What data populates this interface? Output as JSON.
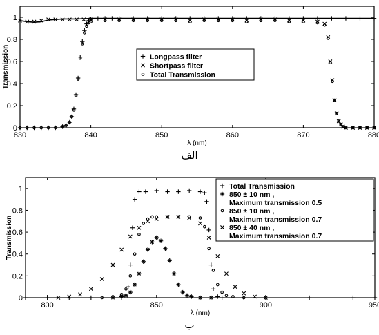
{
  "chart_data": [
    {
      "type": "scatter",
      "caption": "الف",
      "xlabel": "λ (nm)",
      "ylabel": "Transmission",
      "xlim": [
        830,
        880
      ],
      "ylim": [
        0,
        1.1
      ],
      "xticks": [
        830,
        840,
        850,
        860,
        870,
        880
      ],
      "yticks": [
        0,
        0.2,
        0.4,
        0.6,
        0.8,
        1
      ],
      "xtick_labels": [
        "830",
        "840",
        "850",
        "860",
        "870",
        "880"
      ],
      "ytick_labels": [
        "0",
        "0.2",
        "0.4",
        "0.6",
        "0.8",
        "1"
      ],
      "grid": false,
      "legend_position": "center",
      "series": [
        {
          "name": "Longpass filter",
          "marker": "plus",
          "x": [
            830.0,
            831.0,
            832.0,
            833.0,
            834.0,
            835.0,
            836.0,
            836.5,
            837.0,
            837.3,
            837.6,
            837.9,
            838.2,
            838.5,
            838.8,
            839.1,
            839.4,
            839.7,
            840.0,
            841.0,
            842.0,
            843.0,
            844.0,
            846.0,
            848.0,
            850.0,
            852.0,
            854.0,
            856.0,
            858.0,
            860.0,
            862.0,
            864.0,
            866.0,
            868.0,
            870.0,
            872.0,
            874.0,
            876.0,
            878.0,
            880.0
          ],
          "y": [
            0.0,
            0.0,
            0.0,
            0.0,
            0.0,
            0.0,
            0.01,
            0.02,
            0.05,
            0.1,
            0.17,
            0.3,
            0.45,
            0.64,
            0.78,
            0.88,
            0.94,
            0.97,
            0.98,
            0.99,
            0.99,
            0.99,
            0.99,
            0.99,
            0.99,
            0.99,
            0.99,
            0.99,
            0.99,
            0.99,
            0.99,
            0.99,
            0.99,
            0.99,
            0.99,
            0.99,
            0.99,
            0.99,
            0.99,
            0.99,
            0.99
          ]
        },
        {
          "name": "Shortpass filter",
          "marker": "x",
          "x": [
            830.0,
            831.0,
            832.0,
            833.0,
            834.0,
            835.0,
            836.0,
            837.0,
            838.0,
            839.0,
            840.0,
            842.0,
            844.0,
            846.0,
            848.0,
            850.0,
            852.0,
            854.0,
            856.0,
            858.0,
            860.0,
            862.0,
            864.0,
            866.0,
            868.0,
            870.0,
            872.0,
            873.0,
            873.5,
            873.8,
            874.1,
            874.4,
            874.7,
            875.0,
            875.3,
            875.6,
            876.0,
            877.0,
            878.0,
            879.0,
            880.0
          ],
          "y": [
            0.97,
            0.96,
            0.96,
            0.97,
            0.98,
            0.98,
            0.98,
            0.98,
            0.98,
            0.98,
            0.98,
            0.98,
            0.98,
            0.98,
            0.98,
            0.98,
            0.98,
            0.97,
            0.98,
            0.98,
            0.98,
            0.97,
            0.98,
            0.98,
            0.97,
            0.97,
            0.96,
            0.94,
            0.82,
            0.6,
            0.43,
            0.25,
            0.13,
            0.06,
            0.03,
            0.01,
            0.0,
            0.0,
            0.0,
            0.0,
            0.0
          ]
        },
        {
          "name": "Total Transmission",
          "marker": "circle",
          "x": [
            830.0,
            831.0,
            832.0,
            833.0,
            834.0,
            835.0,
            836.0,
            836.5,
            837.0,
            837.3,
            837.6,
            837.9,
            838.2,
            838.5,
            838.8,
            839.1,
            839.4,
            839.7,
            840.0,
            842.0,
            844.0,
            846.0,
            848.0,
            850.0,
            852.0,
            854.0,
            856.0,
            858.0,
            860.0,
            862.0,
            864.0,
            866.0,
            868.0,
            870.0,
            872.0,
            873.0,
            873.5,
            873.8,
            874.1,
            874.4,
            874.7,
            875.0,
            875.3,
            875.6,
            876.0,
            877.0,
            878.0,
            879.0,
            880.0
          ],
          "y": [
            0.0,
            0.0,
            0.0,
            0.0,
            0.0,
            0.0,
            0.01,
            0.02,
            0.05,
            0.1,
            0.16,
            0.29,
            0.44,
            0.63,
            0.76,
            0.86,
            0.92,
            0.95,
            0.96,
            0.97,
            0.97,
            0.97,
            0.97,
            0.97,
            0.97,
            0.96,
            0.97,
            0.97,
            0.97,
            0.96,
            0.97,
            0.97,
            0.96,
            0.96,
            0.95,
            0.93,
            0.81,
            0.59,
            0.42,
            0.25,
            0.13,
            0.06,
            0.03,
            0.01,
            0.0,
            0.0,
            0.0,
            0.0,
            0.0
          ]
        }
      ],
      "curve": {
        "x": [
          830,
          831,
          832,
          833,
          834,
          836,
          838,
          840,
          845,
          850,
          855,
          860,
          865,
          870,
          875,
          880
        ],
        "y": [
          0.97,
          0.96,
          0.955,
          0.96,
          0.975,
          0.985,
          0.985,
          0.99,
          0.99,
          0.99,
          0.99,
          0.99,
          0.99,
          0.99,
          0.99,
          0.99
        ]
      }
    },
    {
      "type": "scatter",
      "caption": "ب",
      "xlabel": "λ (nm)",
      "ylabel": "Transmission",
      "xlim": [
        790,
        950
      ],
      "ylim": [
        0,
        1.1
      ],
      "xticks": [
        800,
        850,
        900,
        950
      ],
      "yticks": [
        0,
        0.2,
        0.4,
        0.6,
        0.8,
        1
      ],
      "xtick_labels": [
        "800",
        "850",
        "900",
        "950"
      ],
      "ytick_labels": [
        "0",
        "0.2",
        "0.4",
        "0.6",
        "0.8",
        "1"
      ],
      "grid": false,
      "legend_position": "top-right",
      "series": [
        {
          "name": "Total Transmission",
          "marker": "plus",
          "x": [
            790,
            800,
            810,
            820,
            830,
            834,
            836,
            837,
            838,
            839,
            840,
            842,
            845,
            850,
            855,
            860,
            865,
            870,
            872,
            873,
            874,
            875,
            876,
            878,
            880,
            890,
            900,
            920,
            940,
            950
          ],
          "y": [
            0,
            0,
            0,
            0,
            0,
            0,
            0.02,
            0.1,
            0.3,
            0.64,
            0.9,
            0.97,
            0.97,
            0.98,
            0.97,
            0.97,
            0.98,
            0.97,
            0.96,
            0.88,
            0.62,
            0.3,
            0.08,
            0.01,
            0,
            0,
            0,
            0,
            0,
            0
          ]
        },
        {
          "name": "850 ± 10 nm ,\nMaximum transmission 0.5",
          "marker": "star",
          "x": [
            830,
            834,
            836,
            838,
            840,
            842,
            844,
            846,
            848,
            850,
            852,
            854,
            856,
            858,
            860,
            862,
            864,
            866,
            870,
            875
          ],
          "y": [
            0,
            0.01,
            0.02,
            0.05,
            0.12,
            0.22,
            0.33,
            0.44,
            0.51,
            0.55,
            0.52,
            0.45,
            0.34,
            0.22,
            0.12,
            0.05,
            0.02,
            0.01,
            0,
            0
          ]
        },
        {
          "name": "850 ± 10 nm ,\nMaximum transmission 0.7",
          "marker": "circle",
          "x": [
            825,
            830,
            834,
            836,
            838,
            840,
            842,
            844,
            846,
            848,
            850,
            855,
            860,
            865,
            870,
            872,
            874,
            876,
            878,
            880,
            882,
            885,
            890
          ],
          "y": [
            0,
            0.01,
            0.03,
            0.08,
            0.2,
            0.4,
            0.58,
            0.68,
            0.72,
            0.74,
            0.74,
            0.74,
            0.74,
            0.74,
            0.73,
            0.65,
            0.45,
            0.25,
            0.12,
            0.05,
            0.02,
            0.01,
            0
          ]
        },
        {
          "name": "850 ± 40 nm ,\nMaximum transmission 0.7",
          "marker": "x",
          "x": [
            805,
            810,
            815,
            820,
            825,
            830,
            834,
            838,
            842,
            846,
            850,
            855,
            860,
            865,
            870,
            874,
            878,
            882,
            886,
            890,
            895,
            900
          ],
          "y": [
            0,
            0.01,
            0.03,
            0.08,
            0.17,
            0.3,
            0.44,
            0.56,
            0.64,
            0.7,
            0.72,
            0.74,
            0.74,
            0.73,
            0.68,
            0.55,
            0.38,
            0.22,
            0.1,
            0.04,
            0.01,
            0
          ]
        }
      ]
    }
  ]
}
